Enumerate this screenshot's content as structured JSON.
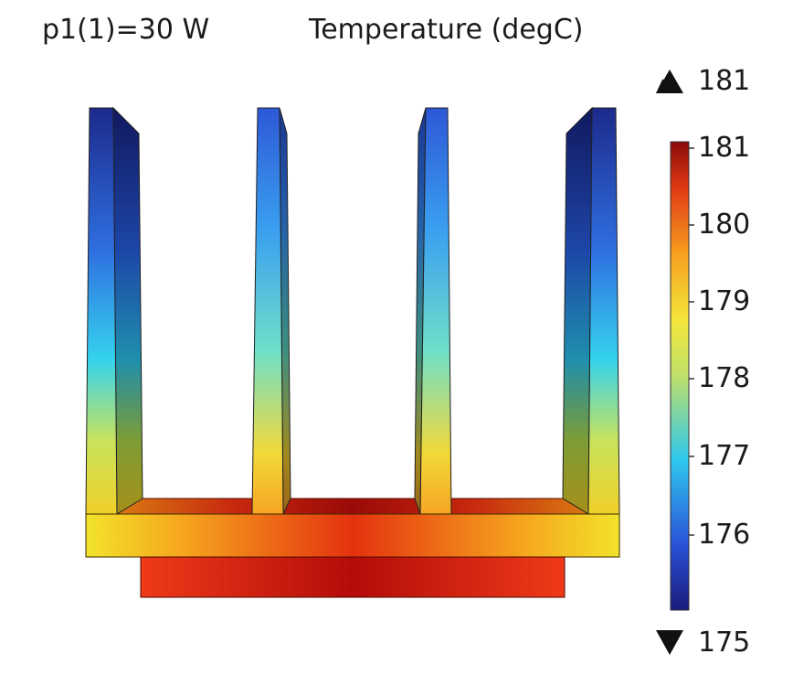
{
  "header": {
    "parameter_label": "p1(1)=30 W",
    "title": "Temperature (degC)"
  },
  "colorbar": {
    "max_marker": "181",
    "min_marker": "175",
    "ticks": [
      "181",
      "180",
      "179",
      "178",
      "177",
      "176"
    ],
    "max_arrow_icon": "triangle-up",
    "min_arrow_icon": "triangle-down",
    "colormap": [
      "#1a1a7a",
      "#2a52d8",
      "#2ec8ee",
      "#bfe06a",
      "#f3e63a",
      "#f7a020",
      "#e03a14",
      "#8a0a0a"
    ]
  }
}
